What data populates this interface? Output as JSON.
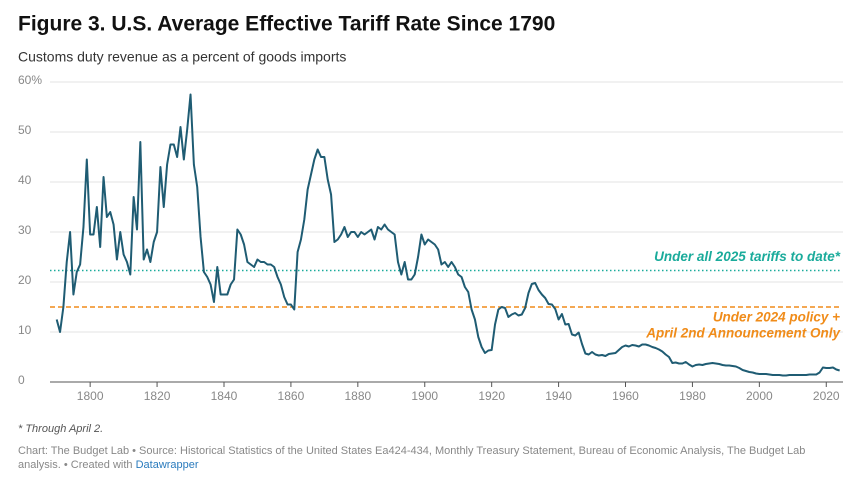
{
  "chart_data": {
    "type": "line",
    "title": "Figure 3. U.S. Average Effective Tariff Rate Since 1790",
    "subtitle": "Customs duty revenue as a percent of goods imports",
    "x": [
      1790,
      1791,
      1792,
      1793,
      1794,
      1795,
      1796,
      1797,
      1798,
      1799,
      1800,
      1801,
      1802,
      1803,
      1804,
      1805,
      1806,
      1807,
      1808,
      1809,
      1810,
      1811,
      1812,
      1813,
      1814,
      1815,
      1816,
      1817,
      1818,
      1819,
      1820,
      1821,
      1822,
      1823,
      1824,
      1825,
      1826,
      1827,
      1828,
      1829,
      1830,
      1831,
      1832,
      1833,
      1834,
      1835,
      1836,
      1837,
      1838,
      1839,
      1840,
      1841,
      1842,
      1843,
      1844,
      1845,
      1846,
      1847,
      1848,
      1849,
      1850,
      1851,
      1852,
      1853,
      1854,
      1855,
      1856,
      1857,
      1858,
      1859,
      1860,
      1861,
      1862,
      1863,
      1864,
      1865,
      1866,
      1867,
      1868,
      1869,
      1870,
      1871,
      1872,
      1873,
      1874,
      1875,
      1876,
      1877,
      1878,
      1879,
      1880,
      1881,
      1882,
      1883,
      1884,
      1885,
      1886,
      1887,
      1888,
      1889,
      1890,
      1891,
      1892,
      1893,
      1894,
      1895,
      1896,
      1897,
      1898,
      1899,
      1900,
      1901,
      1902,
      1903,
      1904,
      1905,
      1906,
      1907,
      1908,
      1909,
      1910,
      1911,
      1912,
      1913,
      1914,
      1915,
      1916,
      1917,
      1918,
      1919,
      1920,
      1921,
      1922,
      1923,
      1924,
      1925,
      1926,
      1927,
      1928,
      1929,
      1930,
      1931,
      1932,
      1933,
      1934,
      1935,
      1936,
      1937,
      1938,
      1939,
      1940,
      1941,
      1942,
      1943,
      1944,
      1945,
      1946,
      1947,
      1948,
      1949,
      1950,
      1951,
      1952,
      1953,
      1954,
      1955,
      1956,
      1957,
      1958,
      1959,
      1960,
      1961,
      1962,
      1963,
      1964,
      1965,
      1966,
      1967,
      1968,
      1969,
      1970,
      1971,
      1972,
      1973,
      1974,
      1975,
      1976,
      1977,
      1978,
      1979,
      1980,
      1981,
      1982,
      1983,
      1984,
      1985,
      1986,
      1987,
      1988,
      1989,
      1990,
      1991,
      1992,
      1993,
      1994,
      1995,
      1996,
      1997,
      1998,
      1999,
      2000,
      2001,
      2002,
      2003,
      2004,
      2005,
      2006,
      2007,
      2008,
      2009,
      2010,
      2011,
      2012,
      2013,
      2014,
      2015,
      2016,
      2017,
      2018,
      2019,
      2020,
      2021,
      2022,
      2023,
      2024
    ],
    "series": [
      {
        "color": "#1f5c73",
        "values": [
          12.5,
          10,
          15,
          24,
          30,
          17.5,
          22,
          23.5,
          31,
          44.5,
          29.5,
          29.5,
          35,
          27,
          41,
          33,
          34,
          31.5,
          24.5,
          30,
          25.5,
          24,
          21.5,
          37,
          30.5,
          48,
          24.5,
          26.5,
          24,
          28,
          30,
          43,
          35,
          43.5,
          47.5,
          47.5,
          45,
          51,
          44.5,
          50.5,
          57.5,
          43.5,
          39,
          29,
          22,
          21,
          19.5,
          16,
          23,
          17.5,
          17.5,
          17.5,
          19.5,
          20.5,
          30.5,
          29.5,
          27.5,
          24,
          23.5,
          23,
          24.5,
          24,
          24,
          23.5,
          23.5,
          23,
          21,
          19.5,
          17,
          15.5,
          15.5,
          14.5,
          26,
          28.5,
          32.5,
          38.5,
          41.5,
          44.5,
          46.5,
          45,
          45,
          40.5,
          37.5,
          28,
          28.5,
          29.5,
          31,
          29,
          30,
          30,
          29,
          30,
          29.5,
          30,
          30.5,
          28.5,
          31,
          30.5,
          31.5,
          30.5,
          30,
          29.5,
          24,
          21.5,
          24,
          20.5,
          20.5,
          21.5,
          25,
          29.5,
          27.5,
          28.5,
          28,
          27.5,
          26.5,
          23.5,
          24,
          23,
          24,
          23,
          21.5,
          21,
          19,
          18,
          14.5,
          12.5,
          9,
          7,
          5.8,
          6.3,
          6.4,
          11.5,
          14.5,
          15,
          14.8,
          13,
          13.5,
          13.8,
          13.3,
          13.5,
          14.8,
          17.8,
          19.6,
          19.8,
          18.4,
          17.5,
          16.8,
          15.6,
          15.5,
          14.6,
          12.5,
          13.6,
          11.5,
          11.6,
          9.5,
          9.3,
          9.9,
          7.6,
          5.7,
          5.5,
          6,
          5.5,
          5.3,
          5.4,
          5.2,
          5.6,
          5.7,
          5.8,
          6.4,
          7,
          7.3,
          7.1,
          7.4,
          7.3,
          7.1,
          7.5,
          7.5,
          7.3,
          7,
          6.8,
          6.5,
          6.1,
          5.5,
          5,
          3.8,
          3.9,
          3.7,
          3.7,
          4,
          3.5,
          3.1,
          3.4,
          3.5,
          3.4,
          3.6,
          3.7,
          3.8,
          3.7,
          3.6,
          3.4,
          3.3,
          3.3,
          3.2,
          3.1,
          2.8,
          2.4,
          2.2,
          2,
          1.9,
          1.7,
          1.6,
          1.6,
          1.6,
          1.5,
          1.4,
          1.4,
          1.4,
          1.3,
          1.3,
          1.4,
          1.4,
          1.4,
          1.4,
          1.4,
          1.4,
          1.5,
          1.5,
          1.5,
          1.9,
          2.9,
          2.8,
          2.8,
          2.9,
          2.5,
          2.3
        ]
      }
    ],
    "xlim": [
      1788,
      2025
    ],
    "xticks": [
      1800,
      1820,
      1840,
      1860,
      1880,
      1900,
      1920,
      1940,
      1960,
      1980,
      2000,
      2020
    ],
    "ylim": [
      0,
      60
    ],
    "yticks": [
      0,
      10,
      20,
      30,
      40,
      50,
      {
        "value": 60,
        "label": "60%"
      }
    ],
    "grid": true,
    "reference_lines": [
      {
        "value": 22.3,
        "color": "#1aab9b",
        "style": "dotted",
        "label": [
          "Under all 2025 tariffs to date*"
        ]
      },
      {
        "value": 15,
        "color": "#f08c1a",
        "style": "dashed",
        "label": [
          "Under 2024 policy +",
          "April 2nd Announcement Only"
        ]
      }
    ],
    "footnote": "* Through April 2.",
    "source": "Chart: The Budget Lab • Source: Historical Statistics of the United States Ea424-434, Monthly Treasury Statement, Bureau of Economic Analysis, The Budget Lab analysis. • Created with",
    "credit_link": "Datawrapper"
  }
}
